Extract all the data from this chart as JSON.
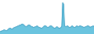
{
  "values": [
    3,
    3,
    4,
    4,
    5,
    5,
    4,
    4,
    5,
    6,
    7,
    7,
    6,
    6,
    7,
    8,
    8,
    9,
    9,
    10,
    10,
    11,
    11,
    12,
    12,
    11,
    10,
    9,
    9,
    10,
    11,
    11,
    10,
    9,
    9,
    8,
    8,
    9,
    9,
    10,
    9,
    8,
    8,
    7,
    7,
    8,
    9,
    10,
    10,
    9,
    8,
    8,
    9,
    10,
    10,
    9,
    8,
    7,
    7,
    8,
    9,
    8,
    7,
    7,
    8,
    9,
    38,
    36,
    10,
    9,
    9,
    10,
    9,
    8,
    8,
    9,
    10,
    9,
    8,
    8,
    9,
    10,
    9,
    9,
    10,
    10,
    9,
    9,
    8,
    8,
    9,
    9,
    10,
    10,
    9,
    8,
    9,
    9,
    10,
    9
  ],
  "fill_color": "#6bc4df",
  "line_color": "#1a8ab5",
  "background_color": "#ffffff",
  "ylim_min": 0,
  "ylim_max": 42
}
